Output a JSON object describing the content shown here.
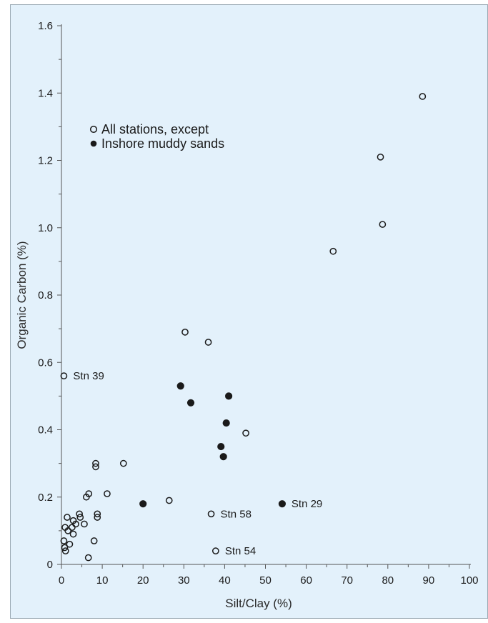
{
  "chart_data": {
    "type": "scatter",
    "xlabel": "Silt/Clay (%)",
    "ylabel": "Organic Carbon (%)",
    "xlim": [
      0,
      100
    ],
    "ylim": [
      0,
      1.6
    ],
    "xticks": [
      "0",
      "10",
      "20",
      "30",
      "40",
      "50",
      "60",
      "70",
      "80",
      "90",
      "100"
    ],
    "yticks": [
      "0",
      "0.2",
      "0.4",
      "0.6",
      "0.8",
      "1.0",
      "1.2",
      "1.4",
      "1.6"
    ],
    "legend_position": "top-left",
    "series": [
      {
        "name": "All stations, except",
        "marker": "open-circle",
        "color": "#1a1a1a",
        "points": [
          [
            88.5,
            1.39
          ],
          [
            78.2,
            1.21
          ],
          [
            78.7,
            1.01
          ],
          [
            66.6,
            0.93
          ],
          [
            30.3,
            0.69
          ],
          [
            36.0,
            0.66
          ],
          [
            45.2,
            0.39
          ],
          [
            0.6,
            0.56
          ],
          [
            15.2,
            0.3
          ],
          [
            8.4,
            0.3
          ],
          [
            8.4,
            0.29
          ],
          [
            11.2,
            0.21
          ],
          [
            6.7,
            0.21
          ],
          [
            6.1,
            0.2
          ],
          [
            26.4,
            0.19
          ],
          [
            36.7,
            0.15
          ],
          [
            8.8,
            0.15
          ],
          [
            8.8,
            0.14
          ],
          [
            4.4,
            0.15
          ],
          [
            4.6,
            0.14
          ],
          [
            1.4,
            0.14
          ],
          [
            2.9,
            0.13
          ],
          [
            3.5,
            0.12
          ],
          [
            5.6,
            0.12
          ],
          [
            0.9,
            0.11
          ],
          [
            2.6,
            0.11
          ],
          [
            1.6,
            0.1
          ],
          [
            2.9,
            0.09
          ],
          [
            0.6,
            0.07
          ],
          [
            8.0,
            0.07
          ],
          [
            2.0,
            0.06
          ],
          [
            0.8,
            0.05
          ],
          [
            1.0,
            0.04
          ],
          [
            37.8,
            0.04
          ],
          [
            6.6,
            0.02
          ]
        ]
      },
      {
        "name": "Inshore muddy sands",
        "marker": "filled-circle",
        "color": "#1a1a1a",
        "points": [
          [
            29.2,
            0.53
          ],
          [
            41.0,
            0.5
          ],
          [
            31.7,
            0.48
          ],
          [
            40.4,
            0.42
          ],
          [
            39.1,
            0.35
          ],
          [
            39.7,
            0.32
          ],
          [
            20.0,
            0.18
          ],
          [
            54.1,
            0.18
          ]
        ]
      }
    ],
    "annotations": [
      {
        "text": "Stn 39",
        "x": 0.6,
        "y": 0.56
      },
      {
        "text": "Stn 58",
        "x": 36.7,
        "y": 0.15
      },
      {
        "text": "Stn 29",
        "x": 54.1,
        "y": 0.18
      },
      {
        "text": "Stn 54",
        "x": 37.8,
        "y": 0.04
      }
    ]
  }
}
